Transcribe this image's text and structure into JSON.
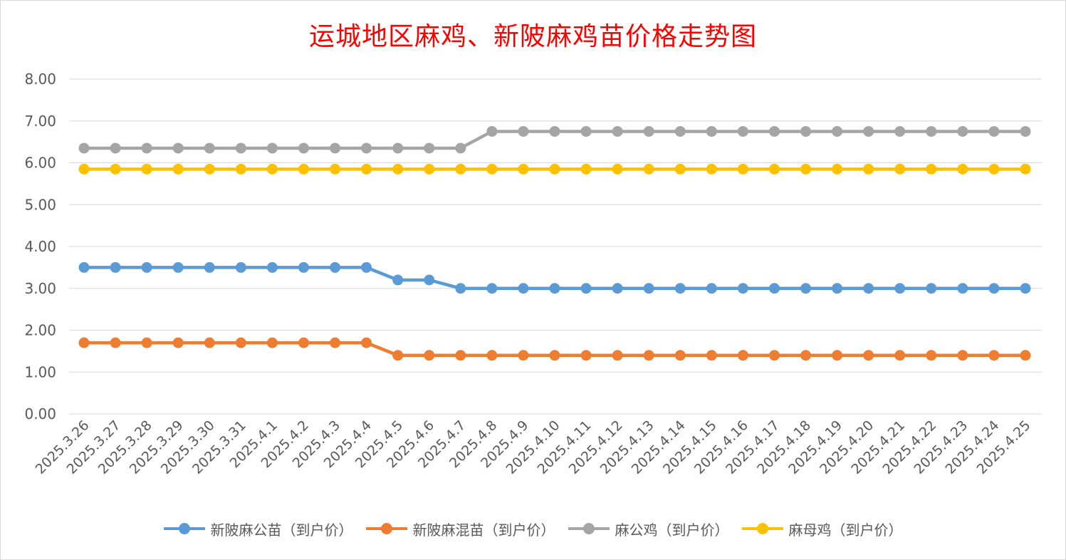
{
  "chart_data": {
    "type": "line",
    "title": "运城地区麻鸡、新陂麻鸡苗价格走势图",
    "xlabel": "",
    "ylabel": "",
    "ylim": [
      0,
      8
    ],
    "ytick_labels": [
      "0.00",
      "1.00",
      "2.00",
      "3.00",
      "4.00",
      "5.00",
      "6.00",
      "7.00",
      "8.00"
    ],
    "grid": true,
    "legend_position": "bottom",
    "categories": [
      "2025.3.26",
      "2025.3.27",
      "2025.3.28",
      "2025.3.29",
      "2025.3.30",
      "2025.3.31",
      "2025.4.1",
      "2025.4.2",
      "2025.4.3",
      "2025.4.4",
      "2025.4.5",
      "2025.4.6",
      "2025.4.7",
      "2025.4.8",
      "2025.4.9",
      "2025.4.10",
      "2025.4.11",
      "2025.4.12",
      "2025.4.13",
      "2025.4.14",
      "2025.4.15",
      "2025.4.16",
      "2025.4.17",
      "2025.4.18",
      "2025.4.19",
      "2025.4.20",
      "2025.4.21",
      "2025.4.22",
      "2025.4.23",
      "2025.4.24",
      "2025.4.25"
    ],
    "series": [
      {
        "name": "新陂麻公苗（到户价）",
        "color": "#5b9bd5",
        "values": [
          3.5,
          3.5,
          3.5,
          3.5,
          3.5,
          3.5,
          3.5,
          3.5,
          3.5,
          3.5,
          3.2,
          3.2,
          3.0,
          3.0,
          3.0,
          3.0,
          3.0,
          3.0,
          3.0,
          3.0,
          3.0,
          3.0,
          3.0,
          3.0,
          3.0,
          3.0,
          3.0,
          3.0,
          3.0,
          3.0,
          3.0
        ]
      },
      {
        "name": "新陂麻混苗（到户价）",
        "color": "#ed7d31",
        "values": [
          1.7,
          1.7,
          1.7,
          1.7,
          1.7,
          1.7,
          1.7,
          1.7,
          1.7,
          1.7,
          1.4,
          1.4,
          1.4,
          1.4,
          1.4,
          1.4,
          1.4,
          1.4,
          1.4,
          1.4,
          1.4,
          1.4,
          1.4,
          1.4,
          1.4,
          1.4,
          1.4,
          1.4,
          1.4,
          1.4,
          1.4
        ]
      },
      {
        "name": "麻公鸡（到户价）",
        "color": "#a5a5a5",
        "values": [
          6.35,
          6.35,
          6.35,
          6.35,
          6.35,
          6.35,
          6.35,
          6.35,
          6.35,
          6.35,
          6.35,
          6.35,
          6.35,
          6.75,
          6.75,
          6.75,
          6.75,
          6.75,
          6.75,
          6.75,
          6.75,
          6.75,
          6.75,
          6.75,
          6.75,
          6.75,
          6.75,
          6.75,
          6.75,
          6.75,
          6.75
        ]
      },
      {
        "name": "麻母鸡（到户价）",
        "color": "#ffc000",
        "values": [
          5.85,
          5.85,
          5.85,
          5.85,
          5.85,
          5.85,
          5.85,
          5.85,
          5.85,
          5.85,
          5.85,
          5.85,
          5.85,
          5.85,
          5.85,
          5.85,
          5.85,
          5.85,
          5.85,
          5.85,
          5.85,
          5.85,
          5.85,
          5.85,
          5.85,
          5.85,
          5.85,
          5.85,
          5.85,
          5.85,
          5.85
        ]
      }
    ]
  }
}
